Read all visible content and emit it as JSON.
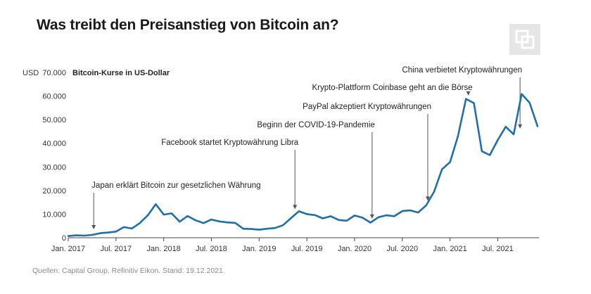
{
  "header": {
    "title": "Was treibt den Preisanstieg von Bitcoin an?",
    "logo_icon": "capital-group-logo-icon"
  },
  "footer": {
    "source": "Quellen: Capital Group, Refinitiv Eikon. Stand: 19.12.2021."
  },
  "chart_data": {
    "type": "line",
    "title": "Was treibt den Preisanstieg von Bitcoin an?",
    "ylabel": "Bitcoin-Kurse in US-Dollar",
    "y_unit_label": "USD",
    "xlabel": "",
    "ylim": [
      0,
      70000
    ],
    "y_ticks": [
      0,
      10000,
      20000,
      30000,
      40000,
      50000,
      60000,
      70000
    ],
    "y_tick_labels": [
      "0",
      "10.000",
      "20.000",
      "30.000",
      "40.000",
      "50.000",
      "60.000",
      "70.000"
    ],
    "x_ticks": [
      {
        "label": "Jan. 2017",
        "month": 0
      },
      {
        "label": "Jul. 2017",
        "month": 6
      },
      {
        "label": "Jan. 2018",
        "month": 12
      },
      {
        "label": "Jul. 2018",
        "month": 18
      },
      {
        "label": "Jan. 2019",
        "month": 24
      },
      {
        "label": "Jul. 2019",
        "month": 30
      },
      {
        "label": "Jan. 2020",
        "month": 36
      },
      {
        "label": "Jul. 2020",
        "month": 42
      },
      {
        "label": "Jan. 2021",
        "month": 48
      },
      {
        "label": "Jul. 2021",
        "month": 54
      }
    ],
    "line_color": "#1f6fa8",
    "series": [
      {
        "name": "Bitcoin",
        "points": [
          [
            0,
            700
          ],
          [
            1,
            1000
          ],
          [
            2,
            900
          ],
          [
            3,
            1200
          ],
          [
            4,
            1900
          ],
          [
            5,
            2200
          ],
          [
            6,
            2600
          ],
          [
            7,
            4500
          ],
          [
            8,
            3900
          ],
          [
            9,
            6200
          ],
          [
            10,
            9500
          ],
          [
            11,
            14200
          ],
          [
            12,
            9800
          ],
          [
            13,
            10300
          ],
          [
            14,
            6800
          ],
          [
            15,
            9200
          ],
          [
            16,
            7400
          ],
          [
            17,
            6200
          ],
          [
            18,
            7700
          ],
          [
            19,
            6900
          ],
          [
            20,
            6500
          ],
          [
            21,
            6300
          ],
          [
            22,
            3800
          ],
          [
            23,
            3700
          ],
          [
            24,
            3400
          ],
          [
            25,
            3800
          ],
          [
            26,
            4100
          ],
          [
            27,
            5300
          ],
          [
            28,
            8300
          ],
          [
            29,
            11200
          ],
          [
            30,
            10000
          ],
          [
            31,
            9600
          ],
          [
            32,
            8200
          ],
          [
            33,
            9100
          ],
          [
            34,
            7500
          ],
          [
            35,
            7200
          ],
          [
            36,
            9400
          ],
          [
            37,
            8500
          ],
          [
            38,
            6400
          ],
          [
            39,
            8700
          ],
          [
            40,
            9500
          ],
          [
            41,
            9100
          ],
          [
            42,
            11300
          ],
          [
            43,
            11600
          ],
          [
            44,
            10700
          ],
          [
            45,
            13700
          ],
          [
            46,
            19500
          ],
          [
            47,
            29000
          ],
          [
            48,
            32000
          ],
          [
            49,
            43000
          ],
          [
            50,
            58800
          ],
          [
            51,
            57000
          ],
          [
            52,
            36600
          ],
          [
            53,
            35000
          ],
          [
            54,
            41400
          ],
          [
            55,
            47000
          ],
          [
            56,
            43800
          ],
          [
            57,
            60900
          ],
          [
            58,
            57200
          ],
          [
            59,
            47200
          ]
        ]
      }
    ],
    "annotations": [
      {
        "text": "Japan erklärt Bitcoin zur gesetzlichen Währung",
        "month": 3.2,
        "value": 2400
      },
      {
        "text": "Facebook startet Kryptowährung Libra",
        "month": 28.5,
        "value": 10900
      },
      {
        "text": "Beginn der COVID-19-Pandemie",
        "month": 38.2,
        "value": 6900
      },
      {
        "text": "PayPal akzeptiert Kryptowährungen",
        "month": 45.2,
        "value": 14500
      },
      {
        "text": "Krypto-Plattform Coinbase geht an die Börse",
        "month": 50.3,
        "value": 59000
      },
      {
        "text": "China verbietet Kryptowährungen",
        "month": 56.8,
        "value": 45000
      }
    ]
  }
}
